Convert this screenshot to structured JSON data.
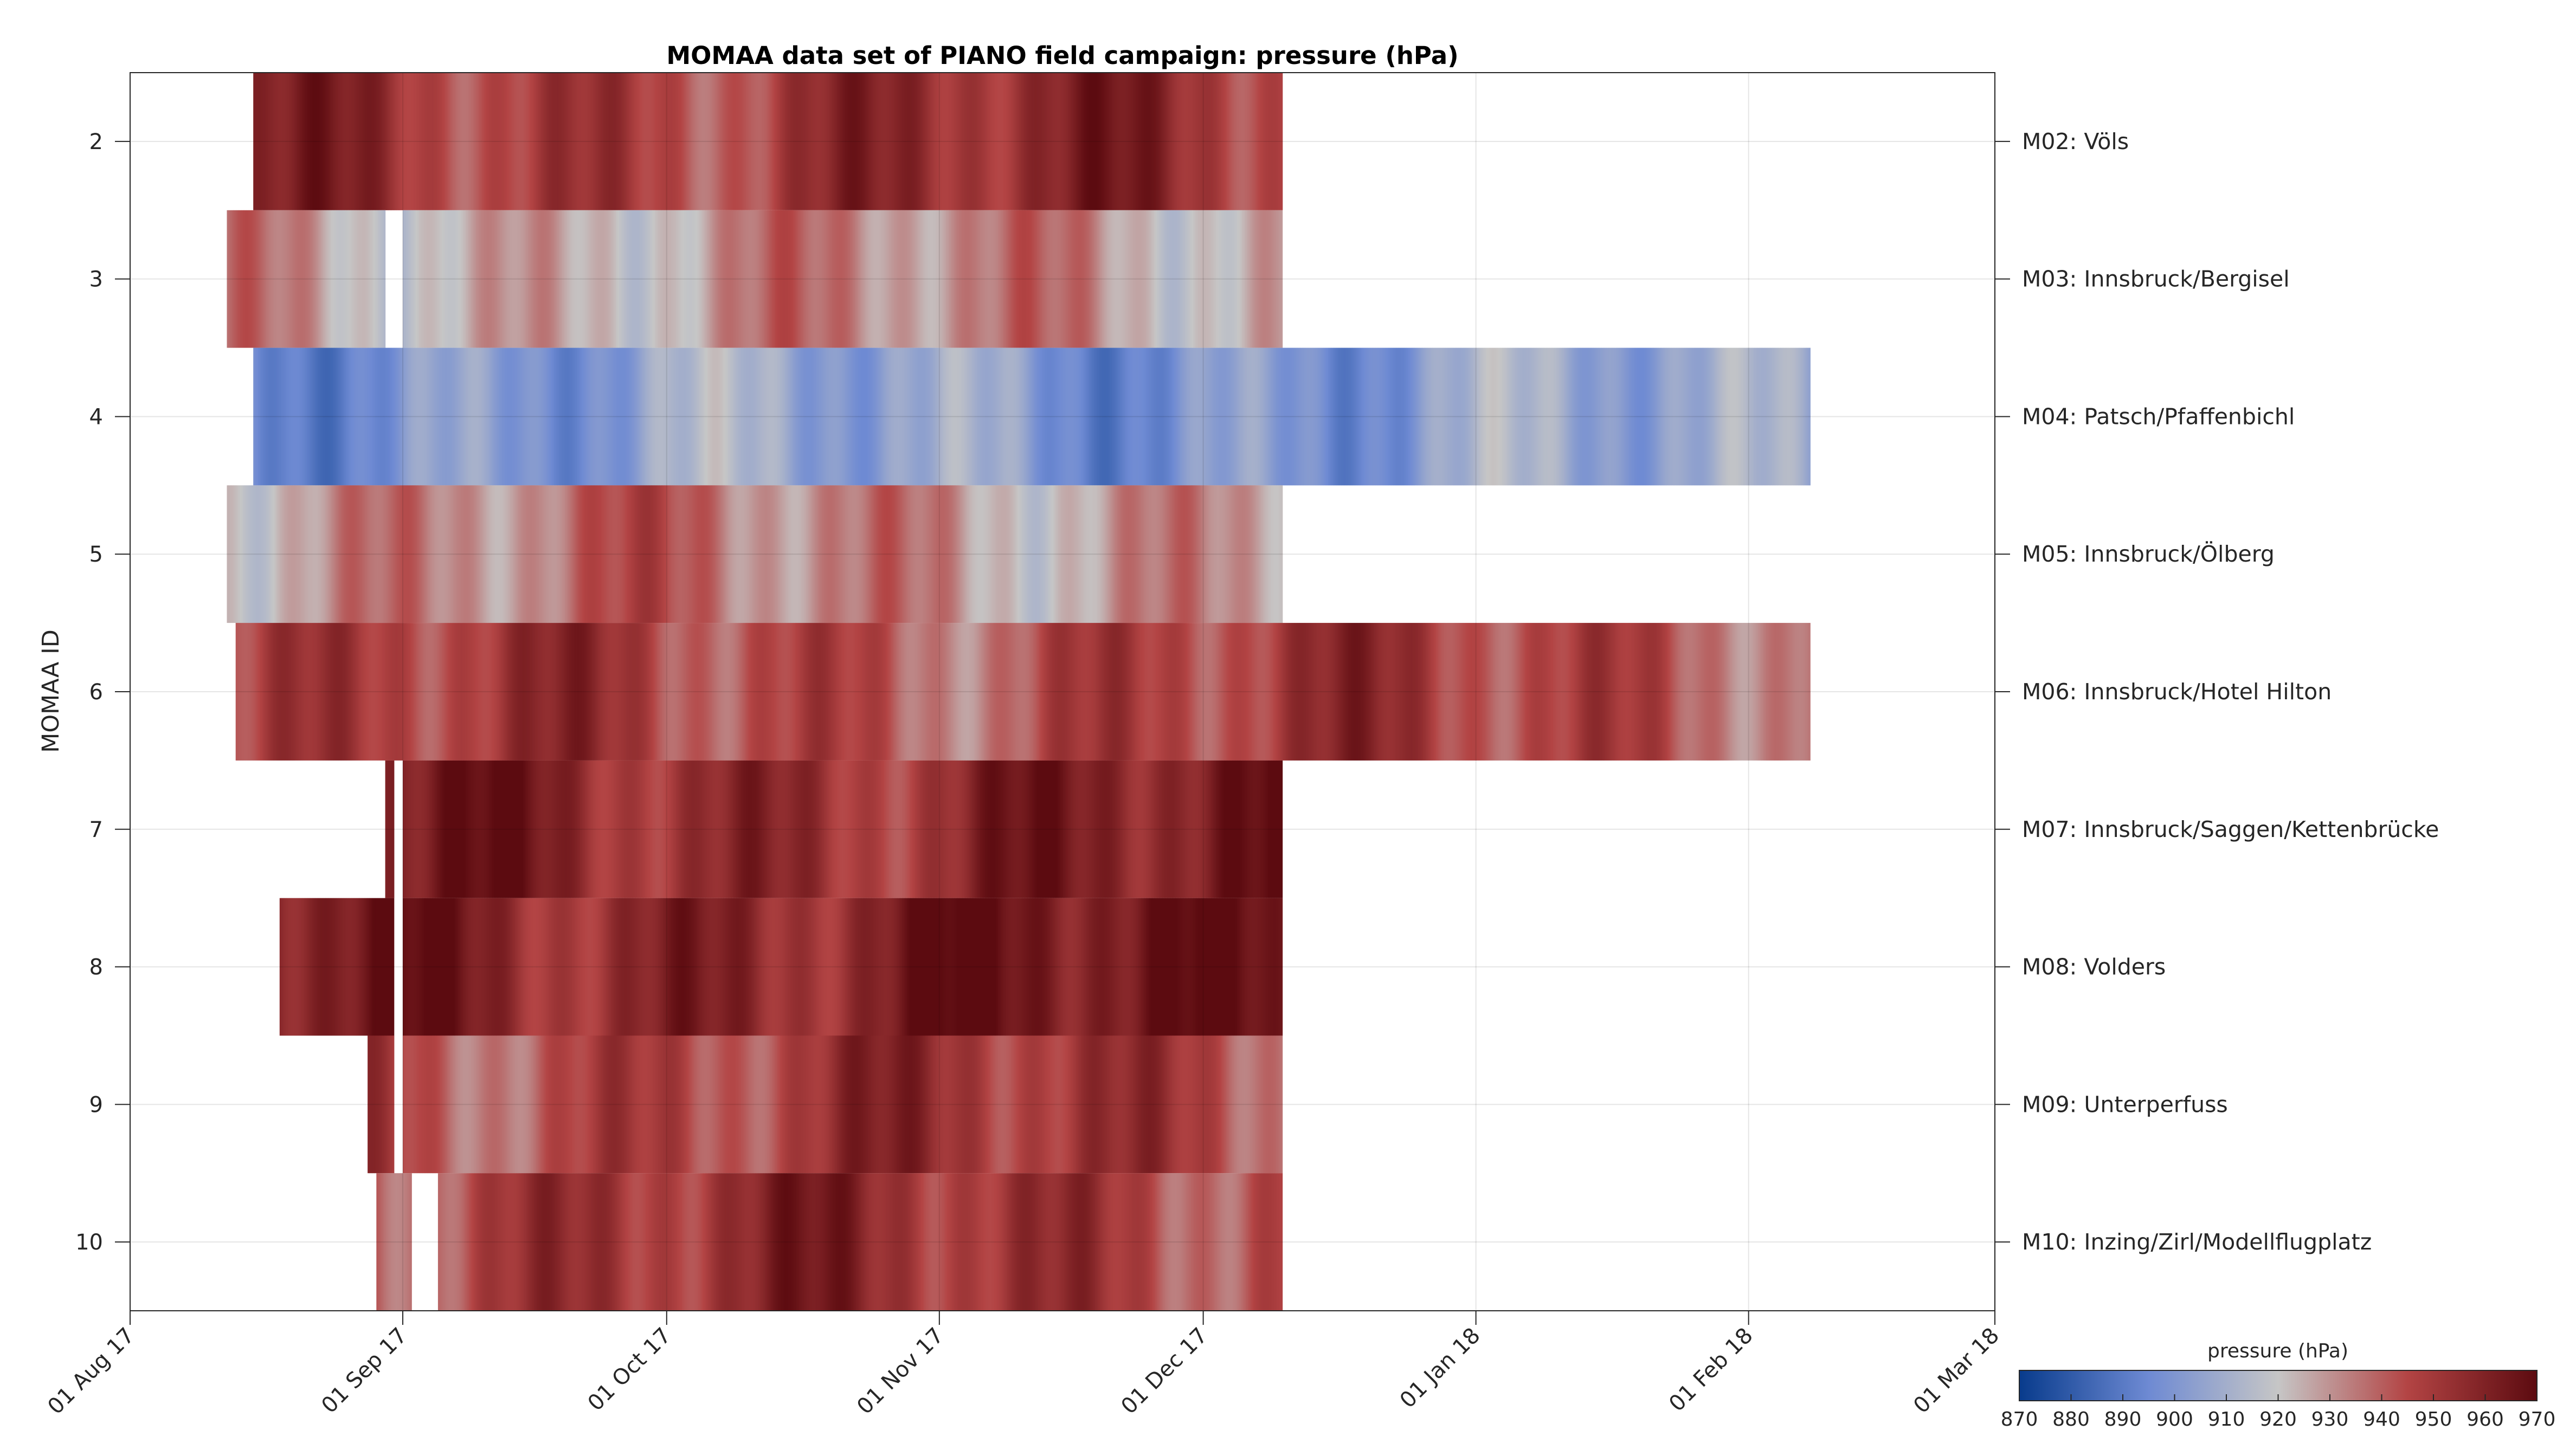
{
  "chart_data": {
    "type": "heatmap",
    "title": "MOMAA data set of PIANO field campaign: pressure (hPa)",
    "ylabel": "MOMAA ID",
    "xlabel": "",
    "x_axis": {
      "type": "date",
      "range": [
        "2017-08-01",
        "2018-03-01"
      ],
      "ticks": [
        {
          "date": "2017-08-01",
          "label": "01 Aug 17"
        },
        {
          "date": "2017-09-01",
          "label": "01 Sep 17"
        },
        {
          "date": "2017-10-01",
          "label": "01 Oct 17"
        },
        {
          "date": "2017-11-01",
          "label": "01 Nov 17"
        },
        {
          "date": "2017-12-01",
          "label": "01 Dec 17"
        },
        {
          "date": "2018-01-01",
          "label": "01 Jan 18"
        },
        {
          "date": "2018-02-01",
          "label": "01 Feb 18"
        },
        {
          "date": "2018-03-01",
          "label": "01 Mar 18"
        }
      ]
    },
    "y_axis": {
      "range": [
        1.5,
        10.5
      ],
      "reversed": true,
      "ticks": [
        2,
        3,
        4,
        5,
        6,
        7,
        8,
        9,
        10
      ]
    },
    "grid": true,
    "colorbar": {
      "label": "pressure (hPa)",
      "min": 870,
      "max": 970,
      "ticks": [
        870,
        880,
        890,
        900,
        910,
        920,
        930,
        940,
        950,
        960,
        970
      ],
      "colors": [
        "#083b8c",
        "#6e8ad3",
        "#c6c6c6",
        "#b34444",
        "#5c0b10"
      ],
      "placement": "bottom-right"
    },
    "series": [
      {
        "id": 2,
        "name": "M02: Völs",
        "mean": 952,
        "segments": [
          [
            "2017-08-15",
            "2017-12-10"
          ]
        ]
      },
      {
        "id": 3,
        "name": "M03: Innsbruck/Bergisel",
        "mean": 929,
        "segments": [
          [
            "2017-08-12",
            "2017-08-30"
          ],
          [
            "2017-09-01",
            "2017-12-10"
          ]
        ]
      },
      {
        "id": 4,
        "name": "M04: Patsch/Pfaffenbichl",
        "mean": 903,
        "segments": [
          [
            "2017-08-15",
            "2018-02-08"
          ]
        ]
      },
      {
        "id": 5,
        "name": "M05: Innsbruck/Ölberg",
        "mean": 933,
        "segments": [
          [
            "2017-08-12",
            "2017-12-10"
          ]
        ]
      },
      {
        "id": 6,
        "name": "M06: Innsbruck/Hotel Hilton",
        "mean": 946,
        "segments": [
          [
            "2017-08-13",
            "2018-02-08"
          ]
        ]
      },
      {
        "id": 7,
        "name": "M07: Innsbruck/Saggen/Kettenbrücke",
        "mean": 958,
        "segments": [
          [
            "2017-08-30",
            "2017-08-31"
          ],
          [
            "2017-09-01",
            "2017-12-10"
          ]
        ]
      },
      {
        "id": 8,
        "name": "M08: Volders",
        "mean": 961,
        "segments": [
          [
            "2017-08-18",
            "2017-08-31"
          ],
          [
            "2017-09-01",
            "2017-12-10"
          ]
        ]
      },
      {
        "id": 9,
        "name": "M09: Unterperfuss",
        "mean": 948,
        "segments": [
          [
            "2017-08-28",
            "2017-08-31"
          ],
          [
            "2017-09-01",
            "2017-12-10"
          ]
        ]
      },
      {
        "id": 10,
        "name": "M10: Inzing/Zirl/Modellflugplatz",
        "mean": 951,
        "segments": [
          [
            "2017-08-29",
            "2017-09-02"
          ],
          [
            "2017-09-05",
            "2017-12-10"
          ]
        ]
      }
    ]
  }
}
